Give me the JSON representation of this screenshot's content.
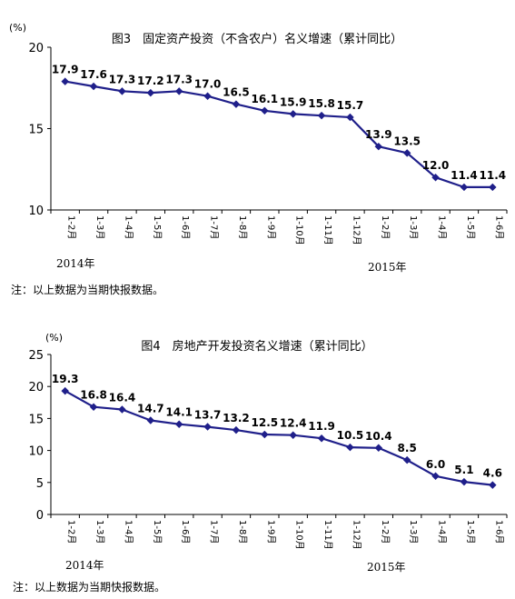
{
  "colors": {
    "line": "#1f1f8a",
    "axis": "#000000",
    "grid": "#000000"
  },
  "chart_data": [
    {
      "type": "line",
      "title": "图3　固定资产投资（不含农户）名义增速（累计同比）",
      "unit": "(%)",
      "categories": [
        "1-2月",
        "1-3月",
        "1-4月",
        "1-5月",
        "1-6月",
        "1-7月",
        "1-8月",
        "1-9月",
        "1-10月",
        "1-11月",
        "1-12月",
        "1-2月",
        "1-3月",
        "1-4月",
        "1-5月",
        "1-6月"
      ],
      "year_labels": [
        "2014年",
        "2015年"
      ],
      "values": [
        17.9,
        17.6,
        17.3,
        17.2,
        17.3,
        17.0,
        16.5,
        16.1,
        15.9,
        15.8,
        15.7,
        13.9,
        13.5,
        12.0,
        11.4,
        11.4
      ],
      "ylim": [
        10,
        20
      ],
      "yticks": [
        "10",
        "15",
        "20"
      ],
      "grid": false,
      "note": "注：以上数据为当期快报数据。"
    },
    {
      "type": "line",
      "title": "图4　房地产开发投资名义增速（累计同比）",
      "unit": "(%)",
      "categories": [
        "1-2月",
        "1-3月",
        "1-4月",
        "1-5月",
        "1-6月",
        "1-7月",
        "1-8月",
        "1-9月",
        "1-10月",
        "1-11月",
        "1-12月",
        "1-2月",
        "1-3月",
        "1-4月",
        "1-5月",
        "1-6月"
      ],
      "year_labels": [
        "2014年",
        "2015年"
      ],
      "values": [
        19.3,
        16.8,
        16.4,
        14.7,
        14.1,
        13.7,
        13.2,
        12.5,
        12.4,
        11.9,
        10.5,
        10.4,
        8.5,
        6.0,
        5.1,
        4.6
      ],
      "ylim": [
        0,
        25
      ],
      "yticks": [
        "0",
        "5",
        "10",
        "15",
        "20",
        "25"
      ],
      "grid": false,
      "note": "注：以上数据为当期快报数据。"
    }
  ]
}
